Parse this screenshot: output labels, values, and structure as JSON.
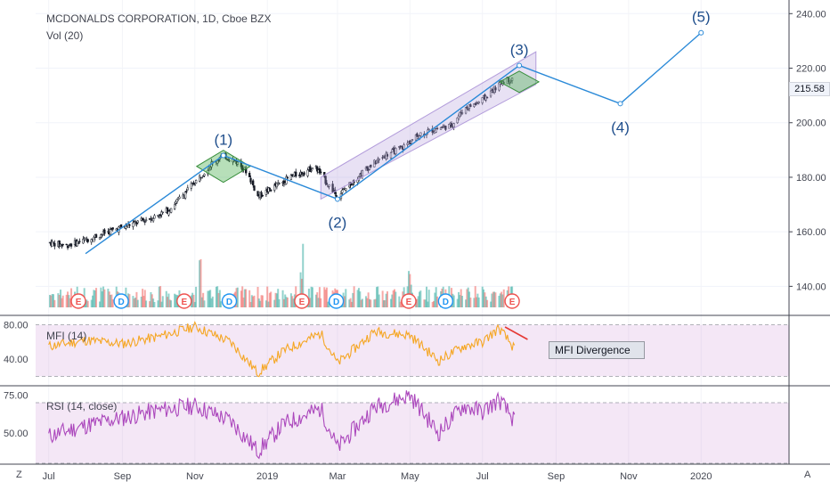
{
  "header": {
    "symbol": "MCDONALDS CORPORATION, 1D, Cboe BZX",
    "volume_label": "Vol (20)",
    "price_tag": "215.58"
  },
  "chart_data": [
    {
      "type": "candlestick",
      "ylim": [
        130,
        245
      ],
      "y_ticks": [
        140,
        160,
        180,
        200,
        220,
        240
      ],
      "y_tick_labels": [
        "140.00",
        "160.00",
        "180.00",
        "200.00",
        "220.00",
        "240.00"
      ],
      "x_tick_labels": [
        "Jul",
        "Sep",
        "Nov",
        "2019",
        "Mar",
        "May",
        "Jul",
        "Sep",
        "Nov",
        "2020"
      ],
      "price_path": [
        [
          "2018-07-02",
          156
        ],
        [
          "2018-07-16",
          155
        ],
        [
          "2018-08-01",
          157
        ],
        [
          "2018-08-20",
          160
        ],
        [
          "2018-09-10",
          163
        ],
        [
          "2018-09-25",
          165
        ],
        [
          "2018-10-10",
          168
        ],
        [
          "2018-10-25",
          175
        ],
        [
          "2018-11-05",
          180
        ],
        [
          "2018-11-15",
          185
        ],
        [
          "2018-11-25",
          188
        ],
        [
          "2018-12-05",
          186
        ],
        [
          "2018-12-15",
          182
        ],
        [
          "2018-12-24",
          173
        ],
        [
          "2019-01-05",
          176
        ],
        [
          "2019-01-20",
          180
        ],
        [
          "2019-02-01",
          182
        ],
        [
          "2019-02-10",
          184
        ],
        [
          "2019-02-20",
          178
        ],
        [
          "2019-03-01",
          173
        ],
        [
          "2019-03-10",
          177
        ],
        [
          "2019-03-25",
          183
        ],
        [
          "2019-04-10",
          188
        ],
        [
          "2019-04-25",
          191
        ],
        [
          "2019-05-10",
          196
        ],
        [
          "2019-05-25",
          198
        ],
        [
          "2019-06-05",
          199
        ],
        [
          "2019-06-15",
          205
        ],
        [
          "2019-06-30",
          208
        ],
        [
          "2019-07-10",
          212
        ],
        [
          "2019-07-20",
          216
        ],
        [
          "2019-07-28",
          215.58
        ]
      ],
      "volume_spikes": [
        [
          "2018-11-05",
          2.5
        ],
        [
          "2019-01-30",
          3.2
        ],
        [
          "2019-05-01",
          2.2
        ]
      ],
      "earnings_markers": [
        "2018-07-26",
        "2018-10-23",
        "2019-01-30",
        "2019-04-30",
        "2019-07-26"
      ],
      "dividend_markers": [
        "2018-08-31",
        "2018-11-30",
        "2019-02-28",
        "2019-05-31"
      ],
      "wave_points": [
        {
          "label": "(1)",
          "date": "2018-11-25",
          "value": 188
        },
        {
          "label": "(2)",
          "date": "2019-03-01",
          "value": 172
        },
        {
          "label": "(3)",
          "date": "2019-08-01",
          "value": 221
        },
        {
          "label": "(4)",
          "date": "2019-10-25",
          "value": 207
        },
        {
          "label": "(5)",
          "date": "2020-01-01",
          "value": 233
        }
      ],
      "wave_start": {
        "date": "2018-08-01",
        "value": 152
      },
      "channel": {
        "lower_start": [
          "2019-02-15",
          172
        ],
        "lower_end": [
          "2019-08-15",
          214
        ],
        "upper_start": [
          "2019-02-15",
          180
        ],
        "upper_end": [
          "2019-08-15",
          226
        ]
      },
      "colors": {
        "up": "#26a69a",
        "down": "#ef5350",
        "wave": "#2b8ad8",
        "channel": "#b39ddb",
        "label": "#1f4e8c"
      }
    },
    {
      "type": "line",
      "name": "MFI (14)",
      "ylim": [
        10,
        90
      ],
      "y_ticks": [
        40,
        80
      ],
      "y_tick_labels": [
        "40.00",
        "80.00"
      ],
      "band": [
        20,
        80
      ],
      "dates": [
        "2018-07-01",
        "2018-08-01",
        "2018-09-01",
        "2018-10-01",
        "2018-11-01",
        "2018-12-01",
        "2018-12-24",
        "2019-01-15",
        "2019-02-15",
        "2019-03-01",
        "2019-04-01",
        "2019-05-01",
        "2019-05-25",
        "2019-06-15",
        "2019-07-01",
        "2019-07-15",
        "2019-07-28"
      ],
      "values": [
        55,
        62,
        58,
        66,
        78,
        60,
        24,
        50,
        70,
        35,
        72,
        68,
        38,
        55,
        60,
        76,
        52
      ],
      "annotation": "MFI Divergence",
      "color": "#f5a623"
    },
    {
      "type": "line",
      "name": "RSI (14, close)",
      "ylim": [
        30,
        80
      ],
      "y_ticks": [
        50,
        75
      ],
      "y_tick_labels": [
        "50.00",
        "75.00"
      ],
      "band": [
        30,
        70
      ],
      "dates": [
        "2018-07-01",
        "2018-08-01",
        "2018-09-01",
        "2018-10-01",
        "2018-11-01",
        "2018-12-01",
        "2018-12-24",
        "2019-01-15",
        "2019-02-15",
        "2019-03-01",
        "2019-04-01",
        "2019-05-01",
        "2019-05-25",
        "2019-06-15",
        "2019-07-01",
        "2019-07-15",
        "2019-07-28"
      ],
      "values": [
        48,
        55,
        60,
        65,
        68,
        58,
        38,
        56,
        66,
        40,
        67,
        75,
        50,
        68,
        64,
        72,
        58
      ],
      "color": "#ab47bc"
    }
  ],
  "footer": {
    "left": "Z",
    "right": "A"
  }
}
